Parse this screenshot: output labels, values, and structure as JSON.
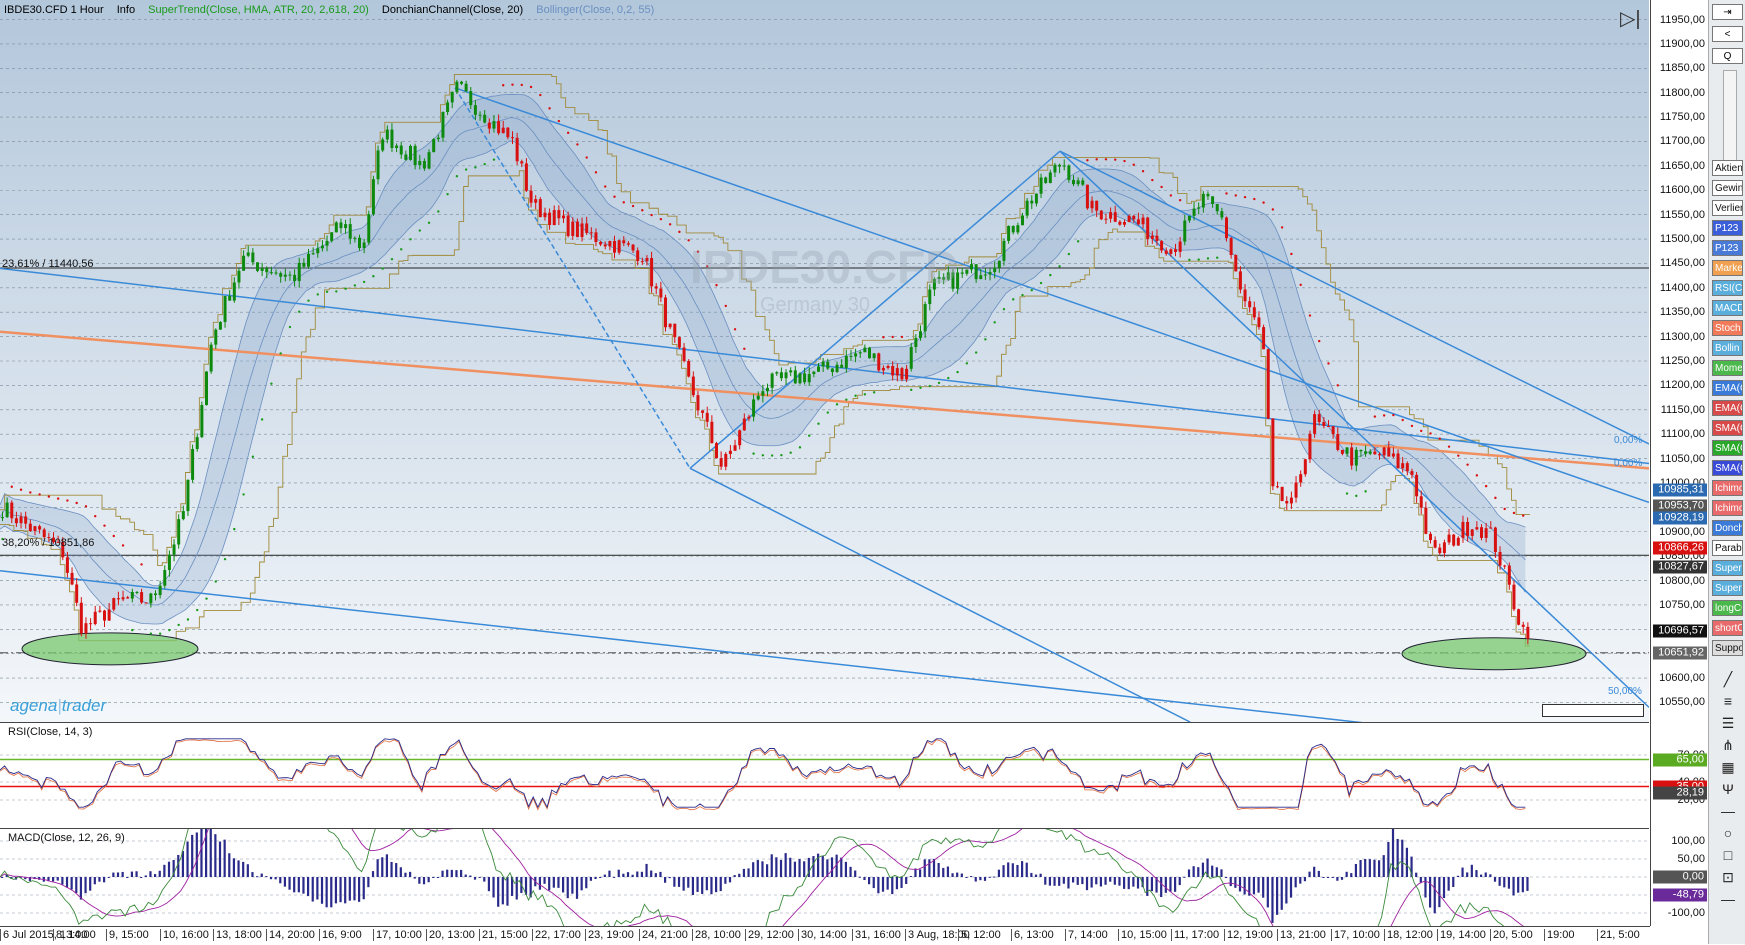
{
  "header": {
    "instrument": "IBDE30.CFD 1 Hour",
    "info": "Info",
    "supertrend": "SuperTrend(Close, HMA, ATR, 20, 2,618, 20)",
    "donchian": "DonchianChannel(Close, 20)",
    "bollinger": "Bollinger(Close, 0,2, 55)",
    "colors": {
      "supertrend": "#1a9a1a",
      "donchian": "#111111",
      "bollinger": "#6a8fc0"
    }
  },
  "watermark": {
    "symbol": "IBDE30.CFD",
    "name": "Germany 30"
  },
  "logo": {
    "part1": "agena",
    "part2": "trader"
  },
  "fib_levels": [
    {
      "label": "23,61% / 11440,56",
      "price": 11440.56
    },
    {
      "label": "38,20% / 10851,86",
      "price": 10851.86
    }
  ],
  "fib_pcts": [
    "0,00%",
    "0,00%",
    "50,00%"
  ],
  "price_axis": {
    "min": 10510,
    "max": 11990,
    "ticks": [
      "11950,00",
      "11900,00",
      "11850,00",
      "11800,00",
      "11750,00",
      "11700,00",
      "11650,00",
      "11600,00",
      "11550,00",
      "11500,00",
      "11450,00",
      "11400,00",
      "11350,00",
      "11300,00",
      "11250,00",
      "11200,00",
      "11150,00",
      "11100,00",
      "11050,00",
      "11000,00",
      "10950,00",
      "10900,00",
      "10850,00",
      "10800,00",
      "10750,00",
      "10700,00",
      "10650,00",
      "10600,00",
      "10550,00"
    ],
    "tags": [
      {
        "text": "10985,31",
        "price": 10985.31,
        "color": "#2b6ab0"
      },
      {
        "text": "10953,70",
        "price": 10953.7,
        "color": "#555555"
      },
      {
        "text": "10928,19",
        "price": 10928.19,
        "color": "#2b6ab0"
      },
      {
        "text": "10866,26",
        "price": 10866.26,
        "color": "#d81010"
      },
      {
        "text": "10827,67",
        "price": 10827.67,
        "color": "#333333"
      },
      {
        "text": "10696,57",
        "price": 10696.57,
        "color": "#111111"
      },
      {
        "text": "10651,92",
        "price": 10651.92,
        "color": "#666666"
      }
    ]
  },
  "rsi": {
    "label": "RSI(Close, 14, 3)",
    "ticks": [
      "70,00",
      "40,00",
      "20,00"
    ],
    "tags": [
      {
        "text": "65,00",
        "value": 65,
        "color": "#5aaa22"
      },
      {
        "text": "35,00",
        "value": 35,
        "color": "#d81010"
      },
      {
        "text": "28,19",
        "value": 28.19,
        "color": "#444444"
      }
    ]
  },
  "macd": {
    "label": "MACD(Close, 12, 26, 9)",
    "ticks": [
      "100,00",
      "50,00",
      "-100,00"
    ],
    "tags": [
      {
        "text": "0,00",
        "value": 0,
        "color": "#555555"
      },
      {
        "text": "-48,79",
        "value": -48.79,
        "color": "#6a2a9a"
      }
    ]
  },
  "time_axis": {
    "ticks": [
      "6 Jul 2015, 13:00",
      "8, 14:00",
      "9, 15:00",
      "10, 16:00",
      "13, 18:00",
      "14, 20:00",
      "16, 9:00",
      "17, 10:00",
      "20, 13:00",
      "21, 15:00",
      "22, 17:00",
      "23, 19:00",
      "24, 21:00",
      "28, 10:00",
      "29, 12:00",
      "30, 14:00",
      "31, 16:00",
      "3 Aug, 18:00",
      "5, 12:00",
      "6, 13:00",
      "7, 14:00",
      "10, 15:00",
      "11, 17:00",
      "12, 19:00",
      "13, 21:00",
      "17, 10:00",
      "18, 12:00",
      "19, 14:00",
      "20, 5:00",
      "19:00",
      "21, 5:00"
    ]
  },
  "toolbar": {
    "top_buttons": [
      "⇥",
      "<",
      "Q"
    ],
    "items": [
      {
        "label": "Aktien",
        "color": "#ffffff"
      },
      {
        "label": "Gewinn",
        "color": "#ffffff"
      },
      {
        "label": "Verlierer",
        "color": "#ffffff"
      },
      {
        "label": "P123",
        "color": "#3b5fd8"
      },
      {
        "label": "P123",
        "color": "#4a7ad8"
      },
      {
        "label": "Market",
        "color": "#f0a050"
      },
      {
        "label": "RSI(C",
        "color": "#5aaedc"
      },
      {
        "label": "MACD",
        "color": "#5aaedc"
      },
      {
        "label": "Stoch",
        "color": "#f07a5a"
      },
      {
        "label": "Bollin",
        "color": "#5aaedc"
      },
      {
        "label": "Momen",
        "color": "#4ab84a"
      },
      {
        "label": "EMA(C",
        "color": "#3a7ad8"
      },
      {
        "label": "EMA(C",
        "color": "#d84a4a"
      },
      {
        "label": "SMA(C",
        "color": "#d84a4a"
      },
      {
        "label": "SMA(C",
        "color": "#2aa82a"
      },
      {
        "label": "SMA(C",
        "color": "#3a4ad8"
      },
      {
        "label": "Ichimo",
        "color": "#e86a6a"
      },
      {
        "label": "Ichimo",
        "color": "#e86a6a"
      },
      {
        "label": "Donch",
        "color": "#3a7ad8"
      },
      {
        "label": "Parabo",
        "color": "#ffffff"
      },
      {
        "label": "Super",
        "color": "#5aaedc"
      },
      {
        "label": "Super",
        "color": "#5aaedc"
      },
      {
        "label": "longCC",
        "color": "#4ab84a"
      },
      {
        "label": "shortCC",
        "color": "#e86a6a"
      },
      {
        "label": "Suppo",
        "color": "#dddddd"
      }
    ],
    "tool_icons": [
      "line-tool-icon",
      "lines-icon",
      "list-icon",
      "fork-icon",
      "table-icon",
      "pitchfork-icon",
      "dash-icon",
      "ellipse-icon",
      "rectangle-icon",
      "scale-icon",
      "minus-icon"
    ]
  },
  "candles_seed": 7
}
